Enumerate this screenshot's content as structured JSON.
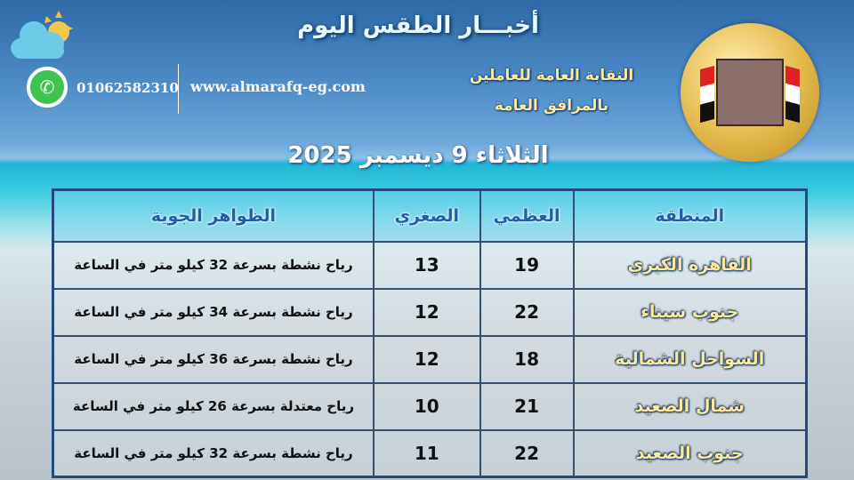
{
  "header": {
    "title": "أخبـــار الطقس اليوم",
    "phone": "01062582310",
    "website": "www.almarafq-eg.com",
    "org_line1": "النقابة العامة للعاملين",
    "org_line2": "بالمرافق العامة",
    "date": "الثلاثاء 9 ديسمبر 2025",
    "logo_text": "النقابة العامة للعاملين بالمرافق العامة"
  },
  "icons": {
    "weather": "sun-cloud-icon",
    "contact": "whatsapp-icon"
  },
  "table": {
    "headers": [
      "المنطقة",
      "العظمي",
      "الصغري",
      "الظواهر الجوية"
    ],
    "rows": [
      {
        "region": "القاهرة الكبري",
        "max": "19",
        "min": "13",
        "phenomena": "رياح نشطة بسرعة 32 كيلو متر في الساعة"
      },
      {
        "region": "جنوب سيناء",
        "max": "22",
        "min": "12",
        "phenomena": "رياح نشطة بسرعة 34 كيلو متر في الساعة"
      },
      {
        "region": "السواحل الشمالية",
        "max": "18",
        "min": "12",
        "phenomena": "رياح نشطة بسرعة 36 كيلو متر في الساعة"
      },
      {
        "region": "شمال الصعيد",
        "max": "21",
        "min": "10",
        "phenomena": "رياح معتدلة بسرعة 26 كيلو متر في الساعة"
      },
      {
        "region": "جنوب الصعيد",
        "max": "22",
        "min": "11",
        "phenomena": "رياح نشطة بسرعة 32 كيلو متر في الساعة"
      }
    ]
  },
  "colors": {
    "region_text": "#fce9a0",
    "header_text": "#1e5fa8",
    "whatsapp": "#3fc350"
  }
}
